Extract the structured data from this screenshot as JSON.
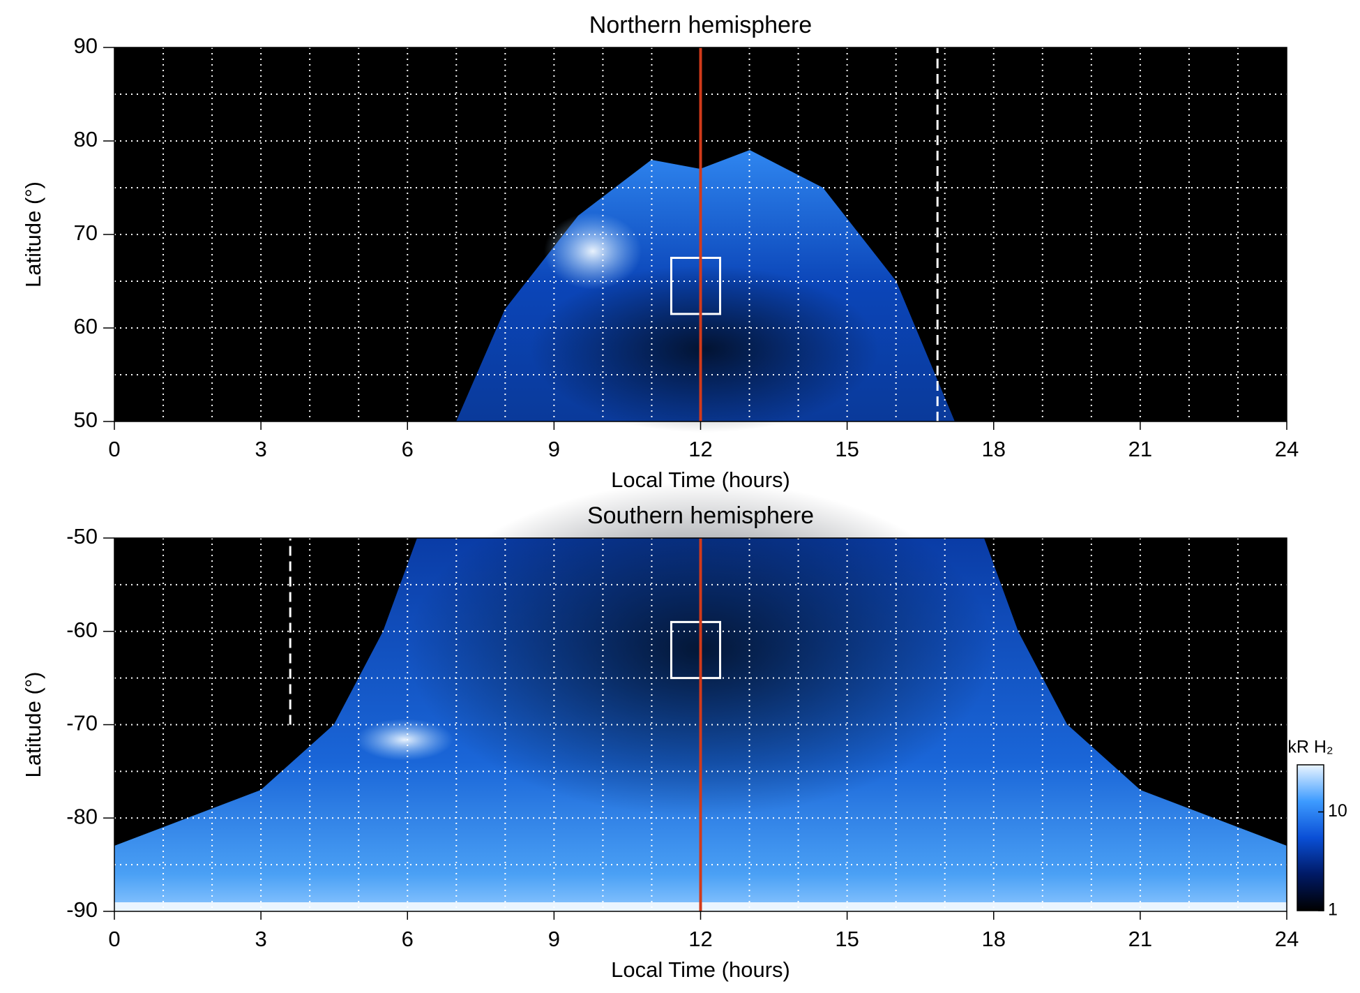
{
  "chart_data": [
    {
      "type": "heatmap",
      "title": "Northern hemisphere",
      "x_label": "Local Time (hours)",
      "y_label": "Latitude (°)",
      "xlim": [
        0,
        24
      ],
      "xticks": [
        0,
        3,
        6,
        9,
        12,
        15,
        18,
        21,
        24
      ],
      "ylim": [
        50,
        90
      ],
      "yticks": [
        50,
        60,
        70,
        80,
        90
      ],
      "grid": true,
      "xgrid": [
        1,
        2,
        3,
        4,
        5,
        6,
        7,
        8,
        9,
        10,
        11,
        12,
        13,
        14,
        15,
        16,
        17,
        18,
        19,
        20,
        21,
        22,
        23
      ],
      "ygrid": [
        55,
        60,
        65,
        70,
        75,
        80,
        85
      ],
      "noon_line": {
        "x": 12,
        "color": "#d23a1a"
      },
      "box": {
        "x": [
          11.4,
          12.4
        ],
        "y": [
          61.5,
          67.5
        ]
      },
      "dashed_line": {
        "x": 16.85,
        "y": [
          50,
          90
        ]
      }
    },
    {
      "type": "heatmap",
      "title": "Southern hemisphere",
      "x_label": "Local Time (hours)",
      "y_label": "Latitude (°)",
      "xlim": [
        0,
        24
      ],
      "xticks": [
        0,
        3,
        6,
        9,
        12,
        15,
        18,
        21,
        24
      ],
      "ylim": [
        -90,
        -50
      ],
      "yticks": [
        -90,
        -80,
        -70,
        -60,
        -50
      ],
      "grid": true,
      "xgrid": [
        1,
        2,
        3,
        4,
        5,
        6,
        7,
        8,
        9,
        10,
        11,
        12,
        13,
        14,
        15,
        16,
        17,
        18,
        19,
        20,
        21,
        22,
        23
      ],
      "ygrid": [
        -85,
        -80,
        -75,
        -70,
        -65,
        -60,
        -55
      ],
      "noon_line": {
        "x": 12,
        "color": "#d23a1a"
      },
      "box": {
        "x": [
          11.4,
          12.4
        ],
        "y": [
          -65,
          -59
        ]
      },
      "dashed_line": {
        "x": 3.6,
        "y": [
          -70,
          -50
        ]
      },
      "colorbar": {
        "label": "kR H₂",
        "scale": "log",
        "lim": [
          1,
          30
        ],
        "ticks": [
          1,
          10
        ],
        "colors": [
          "#000000",
          "#001a66",
          "#0a4fd6",
          "#3d9bff",
          "#eaf5ff"
        ]
      }
    }
  ]
}
